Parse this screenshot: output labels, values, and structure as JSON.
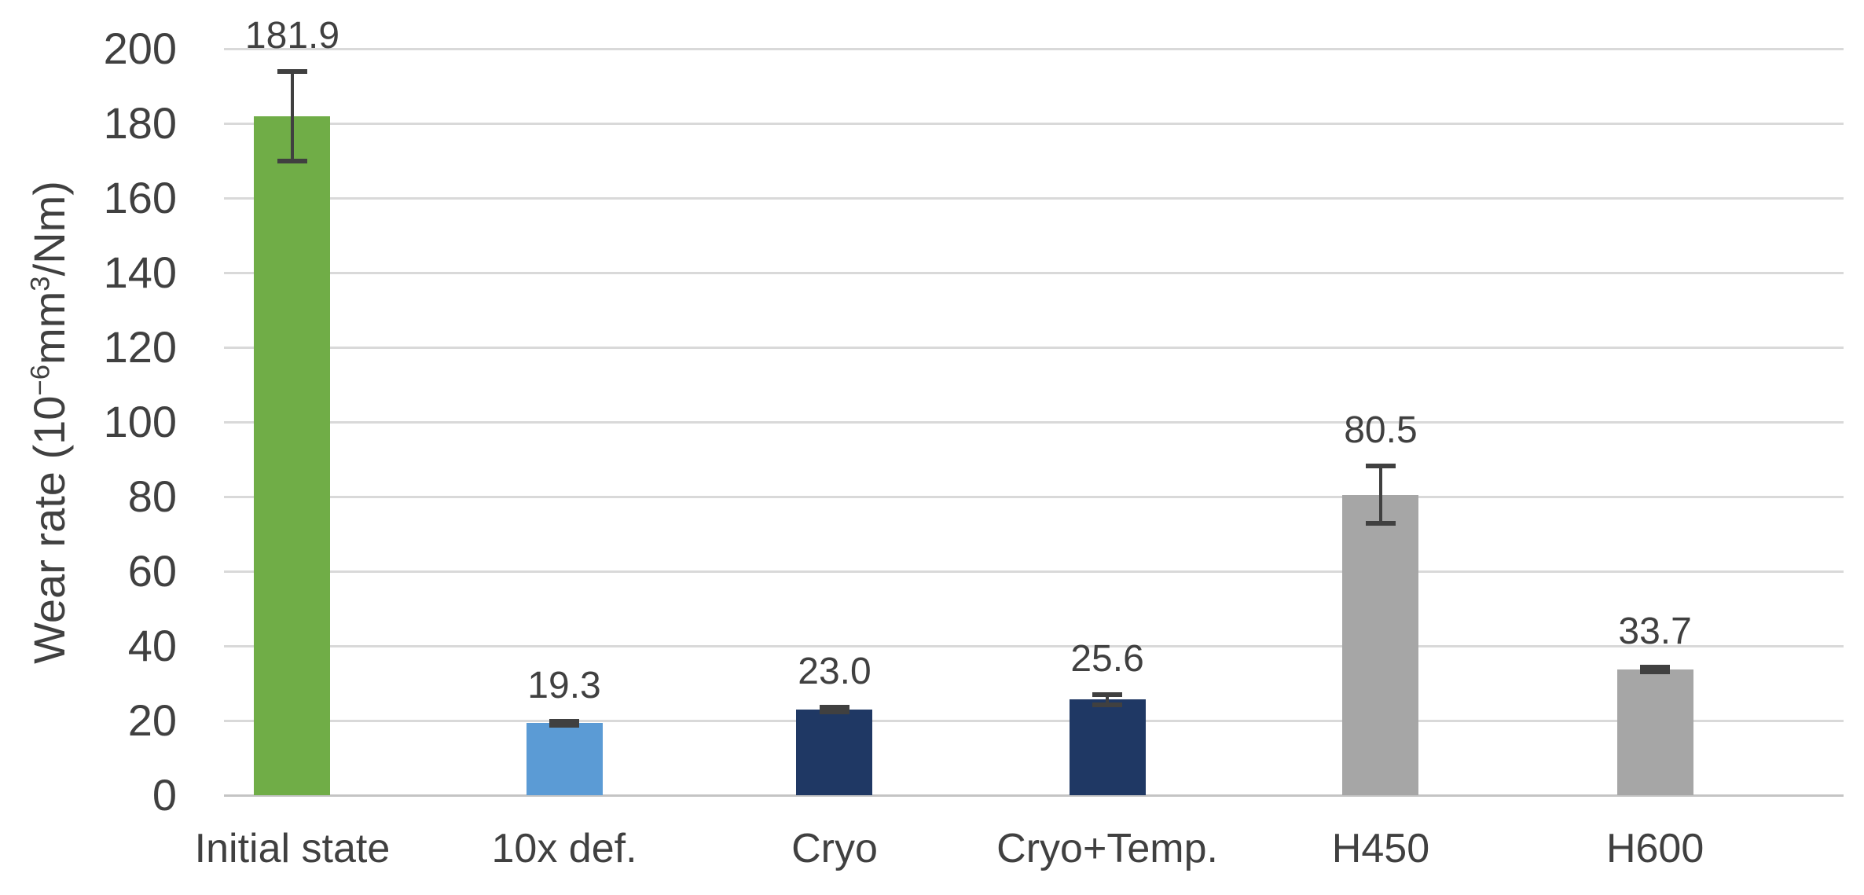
{
  "chart_data": {
    "type": "bar",
    "title": "",
    "xlabel": "",
    "ylabel": "Wear rate (10⁻⁶mm³/Nm)",
    "ylabel_parts": {
      "p1": "Wear rate (10",
      "sup1": "−6",
      "p2": "mm",
      "sup2": "3",
      "p3": "/Nm)"
    },
    "categories": [
      "Initial state",
      "10x def.",
      "Cryo",
      "Cryo+Temp.",
      "H450",
      "H600"
    ],
    "values": [
      181.9,
      19.3,
      23.0,
      25.6,
      80.5,
      33.7
    ],
    "value_labels": [
      "181.9",
      "19.3",
      "23.0",
      "25.6",
      "80.5",
      "33.7"
    ],
    "error_bars": [
      12.0,
      0.5,
      0.6,
      1.4,
      7.7,
      0.6
    ],
    "bar_colors": [
      "#70AD47",
      "#5B9BD5",
      "#1F3864",
      "#1F3864",
      "#A6A6A6",
      "#A6A6A6"
    ],
    "ylim": [
      0,
      200
    ],
    "ytick_interval": 20,
    "yticks": [
      0,
      20,
      40,
      60,
      80,
      100,
      120,
      140,
      160,
      180,
      200
    ],
    "grid": true,
    "legend": "none",
    "bar_center_fractions": [
      0.0422,
      0.2101,
      0.377,
      0.5454,
      0.7142,
      0.8836
    ],
    "colors": {
      "background": "#FFFFFF",
      "gridline": "#D9D9D9",
      "baseline": "#C4C4C4",
      "axis_text": "#404040",
      "value_text": "#404040",
      "error_bar": "#404040"
    }
  }
}
